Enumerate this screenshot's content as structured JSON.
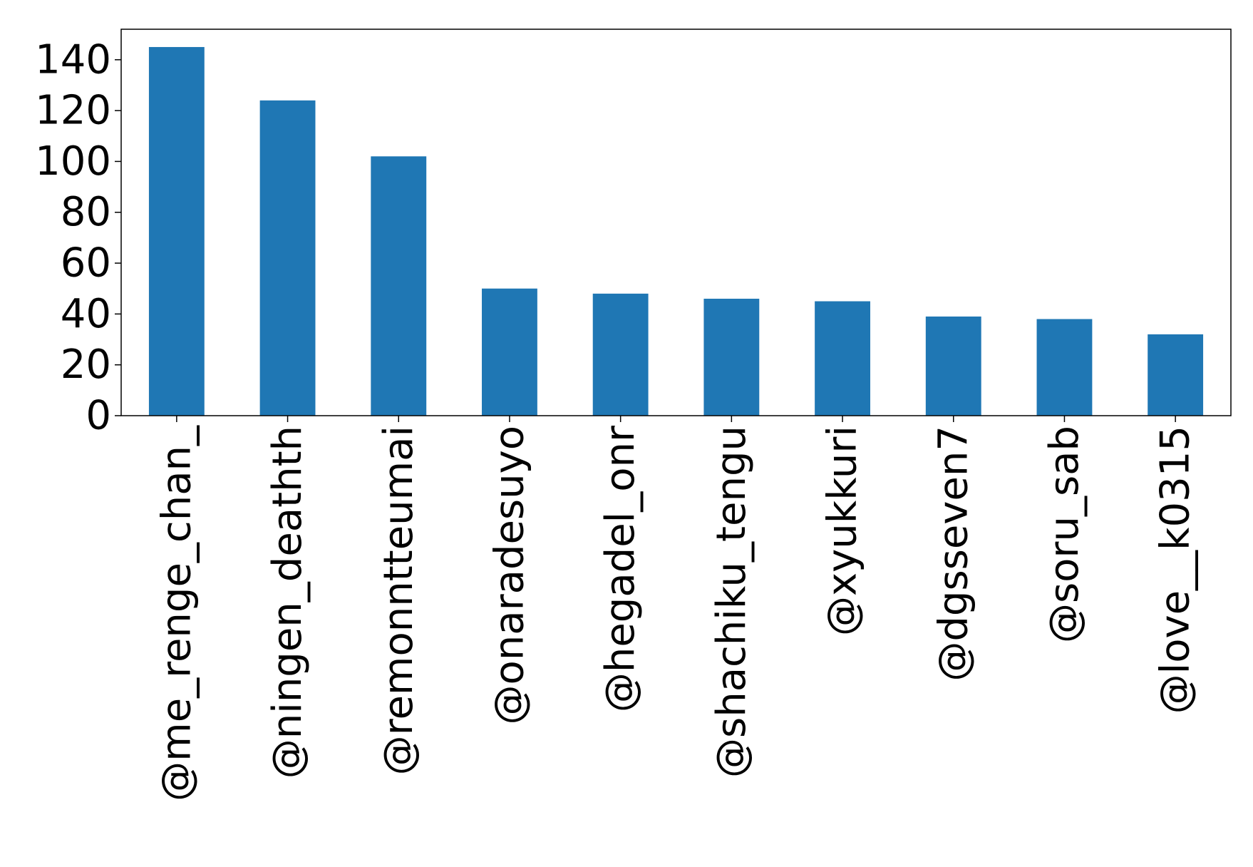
{
  "chart_data": {
    "type": "bar",
    "title": "",
    "xlabel": "",
    "ylabel": "",
    "categories": [
      "@me_renge_chan_",
      "@ningen_deathth",
      "@remonntteumai",
      "@onaradesuyo",
      "@hegadel_onr",
      "@shachiku_tengu",
      "@xyukkuri",
      "@dgsseven7",
      "@soru_sab",
      "@love__k0315"
    ],
    "values": [
      145,
      124,
      102,
      50,
      48,
      46,
      45,
      39,
      38,
      32
    ],
    "ylim": [
      0,
      152
    ],
    "yticks": [
      0,
      20,
      40,
      60,
      80,
      100,
      120,
      140
    ],
    "ytick_labels": [
      "0",
      "20",
      "40",
      "60",
      "80",
      "100",
      "120",
      "140"
    ],
    "bar_color": "#1f77b4",
    "grid": false,
    "legend": "none"
  }
}
